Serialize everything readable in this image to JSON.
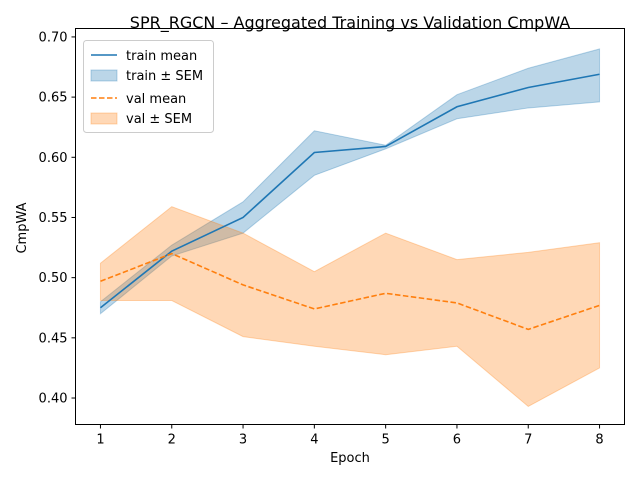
{
  "chart_data": {
    "type": "line",
    "title": "SPR_RGCN – Aggregated Training vs Validation CmpWA",
    "xlabel": "Epoch",
    "ylabel": "CmpWA",
    "x": [
      1,
      2,
      3,
      4,
      5,
      6,
      7,
      8
    ],
    "xlim": [
      0.65,
      8.35
    ],
    "ylim": [
      0.378,
      0.707
    ],
    "yticks": [
      0.4,
      0.45,
      0.5,
      0.55,
      0.6,
      0.65,
      0.7
    ],
    "xticks": [
      1,
      2,
      3,
      4,
      5,
      6,
      7,
      8
    ],
    "grid": false,
    "legend_position": "top-left",
    "series": [
      {
        "name": "train mean",
        "band_name": "train ± SEM",
        "color": "#1f77b4",
        "line_style": "solid",
        "values": [
          0.475,
          0.522,
          0.55,
          0.604,
          0.609,
          0.642,
          0.658,
          0.669
        ],
        "lower": [
          0.47,
          0.518,
          0.537,
          0.585,
          0.607,
          0.632,
          0.641,
          0.646
        ],
        "upper": [
          0.48,
          0.527,
          0.563,
          0.622,
          0.61,
          0.652,
          0.674,
          0.69
        ]
      },
      {
        "name": "val mean",
        "band_name": "val ± SEM",
        "color": "#ff7f0e",
        "line_style": "dashed",
        "values": [
          0.497,
          0.52,
          0.494,
          0.474,
          0.487,
          0.479,
          0.457,
          0.477
        ],
        "lower": [
          0.481,
          0.481,
          0.451,
          0.443,
          0.436,
          0.443,
          0.393,
          0.425
        ],
        "upper": [
          0.512,
          0.559,
          0.537,
          0.505,
          0.537,
          0.515,
          0.521,
          0.529
        ]
      }
    ]
  }
}
